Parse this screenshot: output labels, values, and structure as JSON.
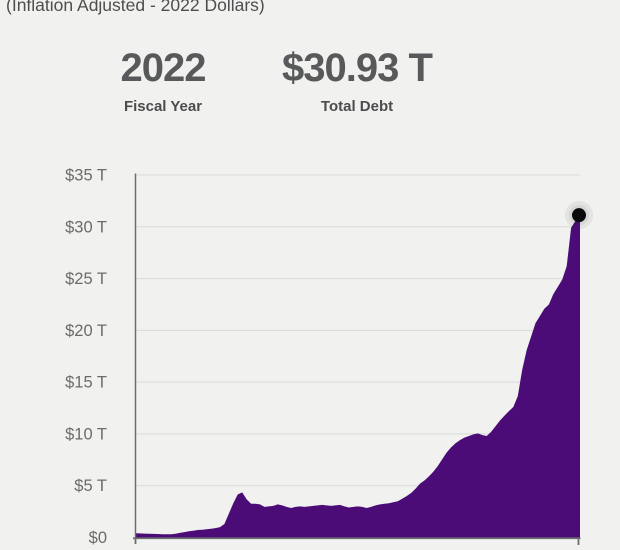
{
  "header": {
    "subtitle": "(Inflation Adjusted - 2022 Dollars)"
  },
  "stats": [
    {
      "value": "2022",
      "label": "Fiscal Year"
    },
    {
      "value": "$30.93 T",
      "label": "Total Debt"
    }
  ],
  "chart_data": {
    "type": "area",
    "title": "",
    "ylabel": "",
    "xlabel": "",
    "unit": "trillions of 2022 dollars",
    "x_range": [
      1922,
      2022
    ],
    "ylim": [
      0,
      35
    ],
    "ytick_step": 5,
    "ytick_labels": [
      "$0",
      "$5 T",
      "$10 T",
      "$15 T",
      "$20 T",
      "$25 T",
      "$30 T",
      "$35 T"
    ],
    "grid": "on",
    "x": [
      1922,
      1923,
      1924,
      1925,
      1926,
      1927,
      1928,
      1929,
      1930,
      1931,
      1932,
      1933,
      1934,
      1935,
      1936,
      1937,
      1938,
      1939,
      1940,
      1941,
      1942,
      1943,
      1944,
      1945,
      1946,
      1947,
      1948,
      1949,
      1950,
      1951,
      1952,
      1953,
      1954,
      1955,
      1956,
      1957,
      1958,
      1959,
      1960,
      1961,
      1962,
      1963,
      1964,
      1965,
      1966,
      1967,
      1968,
      1969,
      1970,
      1971,
      1972,
      1973,
      1974,
      1975,
      1976,
      1977,
      1978,
      1979,
      1980,
      1981,
      1982,
      1983,
      1984,
      1985,
      1986,
      1987,
      1988,
      1989,
      1990,
      1991,
      1992,
      1993,
      1994,
      1995,
      1996,
      1997,
      1998,
      1999,
      2000,
      2001,
      2002,
      2003,
      2004,
      2005,
      2006,
      2007,
      2008,
      2009,
      2010,
      2011,
      2012,
      2013,
      2014,
      2015,
      2016,
      2017,
      2018,
      2019,
      2020,
      2021,
      2022
    ],
    "values": [
      0.41,
      0.4,
      0.38,
      0.37,
      0.35,
      0.34,
      0.32,
      0.31,
      0.32,
      0.36,
      0.44,
      0.52,
      0.6,
      0.65,
      0.72,
      0.75,
      0.79,
      0.84,
      0.91,
      1.0,
      1.3,
      2.3,
      3.3,
      4.15,
      4.35,
      3.7,
      3.25,
      3.25,
      3.2,
      2.95,
      3.0,
      3.05,
      3.2,
      3.1,
      2.95,
      2.85,
      2.95,
      3.0,
      2.95,
      3.0,
      3.05,
      3.1,
      3.15,
      3.1,
      3.05,
      3.1,
      3.15,
      3.0,
      2.9,
      2.95,
      3.0,
      2.95,
      2.85,
      2.95,
      3.1,
      3.2,
      3.25,
      3.3,
      3.4,
      3.5,
      3.75,
      4.0,
      4.3,
      4.7,
      5.2,
      5.5,
      5.9,
      6.35,
      6.9,
      7.55,
      8.2,
      8.7,
      9.1,
      9.4,
      9.65,
      9.8,
      9.95,
      10.05,
      9.9,
      9.8,
      10.2,
      10.75,
      11.3,
      11.75,
      12.2,
      12.6,
      13.65,
      16.2,
      18.1,
      19.4,
      20.7,
      21.4,
      22.1,
      22.5,
      23.5,
      24.2,
      24.9,
      26.2,
      29.9,
      30.6,
      30.93
    ],
    "end_marker": {
      "x": 2022,
      "value": 30.93
    },
    "colors": {
      "area": "#4b0c78",
      "marker": "#0a0a0a",
      "marker_halo": "rgba(40,40,40,0.07)",
      "grid": "#dadada",
      "axis": "#6e6e6e",
      "tick_text": "#6b6b6b"
    }
  }
}
